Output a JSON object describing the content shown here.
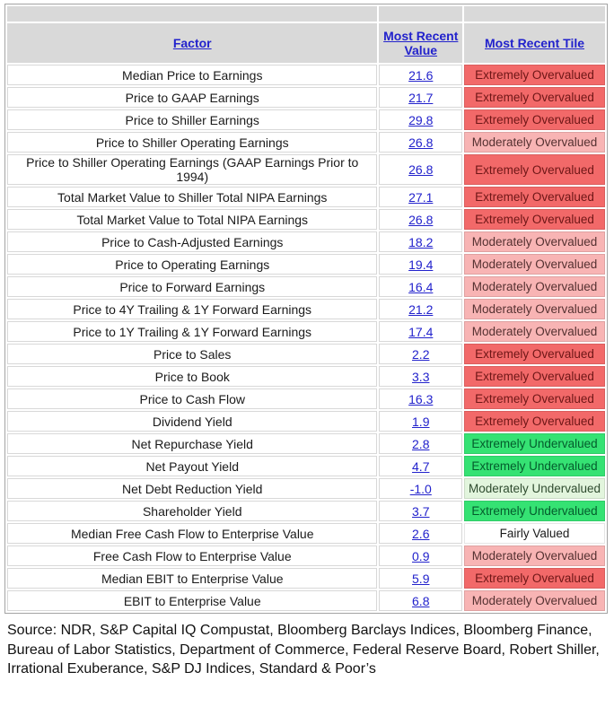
{
  "colors": {
    "link": "#2222cc",
    "header_bg": "#d9d9d9",
    "grid": "#d8d8d8",
    "outer_border": "#a3a3a3",
    "text": "#1a1a1a"
  },
  "tile_styles": {
    "extreme-over": {
      "bg": "#f26969",
      "fg": "#6e1616"
    },
    "moderate-over": {
      "bg": "#f8b4b4",
      "fg": "#553131"
    },
    "extreme-under": {
      "bg": "#35e273",
      "fg": "#045c2c"
    },
    "moderate-under": {
      "bg": "#e2f5dd",
      "fg": "#2f4b2f"
    },
    "fair": {
      "bg": "#ffffff",
      "fg": "#1a1a1a"
    }
  },
  "chart_data": {
    "type": "table",
    "columns": [
      "Factor",
      "Most Recent Value",
      "Most Recent Tile"
    ],
    "rows": [
      {
        "factor": "Median Price to Earnings",
        "value": "21.6",
        "tile": "Extremely Overvalued",
        "level": "extreme-over"
      },
      {
        "factor": "Price to GAAP Earnings",
        "value": "21.7",
        "tile": "Extremely Overvalued",
        "level": "extreme-over"
      },
      {
        "factor": "Price to Shiller Earnings",
        "value": "29.8",
        "tile": "Extremely Overvalued",
        "level": "extreme-over"
      },
      {
        "factor": "Price to Shiller Operating Earnings",
        "value": "26.8",
        "tile": "Moderately Overvalued",
        "level": "moderate-over"
      },
      {
        "factor": "Price to Shiller Operating Earnings (GAAP Earnings Prior to 1994)",
        "value": "26.8",
        "tile": "Extremely Overvalued",
        "level": "extreme-over"
      },
      {
        "factor": "Total Market Value to Shiller Total NIPA Earnings",
        "value": "27.1",
        "tile": "Extremely Overvalued",
        "level": "extreme-over"
      },
      {
        "factor": "Total Market Value to Total NIPA Earnings",
        "value": "26.8",
        "tile": "Extremely Overvalued",
        "level": "extreme-over"
      },
      {
        "factor": "Price to Cash-Adjusted Earnings",
        "value": "18.2",
        "tile": "Moderately Overvalued",
        "level": "moderate-over"
      },
      {
        "factor": "Price to Operating Earnings",
        "value": "19.4",
        "tile": "Moderately Overvalued",
        "level": "moderate-over"
      },
      {
        "factor": "Price to Forward Earnings",
        "value": "16.4",
        "tile": "Moderately Overvalued",
        "level": "moderate-over"
      },
      {
        "factor": "Price to 4Y Trailing & 1Y Forward Earnings",
        "value": "21.2",
        "tile": "Moderately Overvalued",
        "level": "moderate-over"
      },
      {
        "factor": "Price to 1Y Trailing & 1Y Forward Earnings",
        "value": "17.4",
        "tile": "Moderately Overvalued",
        "level": "moderate-over"
      },
      {
        "factor": "Price to Sales",
        "value": "2.2",
        "tile": "Extremely Overvalued",
        "level": "extreme-over"
      },
      {
        "factor": "Price to Book",
        "value": "3.3",
        "tile": "Extremely Overvalued",
        "level": "extreme-over"
      },
      {
        "factor": "Price to Cash Flow",
        "value": "16.3",
        "tile": "Extremely Overvalued",
        "level": "extreme-over"
      },
      {
        "factor": "Dividend Yield",
        "value": "1.9",
        "tile": "Extremely Overvalued",
        "level": "extreme-over"
      },
      {
        "factor": "Net Repurchase Yield",
        "value": "2.8",
        "tile": "Extremely Undervalued",
        "level": "extreme-under"
      },
      {
        "factor": "Net Payout Yield",
        "value": "4.7",
        "tile": "Extremely Undervalued",
        "level": "extreme-under"
      },
      {
        "factor": "Net Debt Reduction Yield",
        "value": "-1.0",
        "tile": "Moderately Undervalued",
        "level": "moderate-under"
      },
      {
        "factor": "Shareholder Yield",
        "value": "3.7",
        "tile": "Extremely Undervalued",
        "level": "extreme-under"
      },
      {
        "factor": "Median Free Cash Flow to Enterprise Value",
        "value": "2.6",
        "tile": "Fairly Valued",
        "level": "fair"
      },
      {
        "factor": "Free Cash Flow to Enterprise Value",
        "value": "0.9",
        "tile": "Moderately Overvalued",
        "level": "moderate-over"
      },
      {
        "factor": "Median EBIT to Enterprise Value",
        "value": "5.9",
        "tile": "Extremely Overvalued",
        "level": "extreme-over"
      },
      {
        "factor": "EBIT to Enterprise Value",
        "value": "6.8",
        "tile": "Moderately Overvalued",
        "level": "moderate-over"
      }
    ]
  },
  "footer": {
    "source": "Source: NDR, S&P Capital IQ Compustat, Bloomberg Barclays Indices, Bloomberg Finance,\nBureau of Labor Statistics, Department of Commerce, Federal Reserve Board, Robert Shiller,\nIrrational Exuberance, S&P DJ Indices, Standard & Poor’s"
  }
}
